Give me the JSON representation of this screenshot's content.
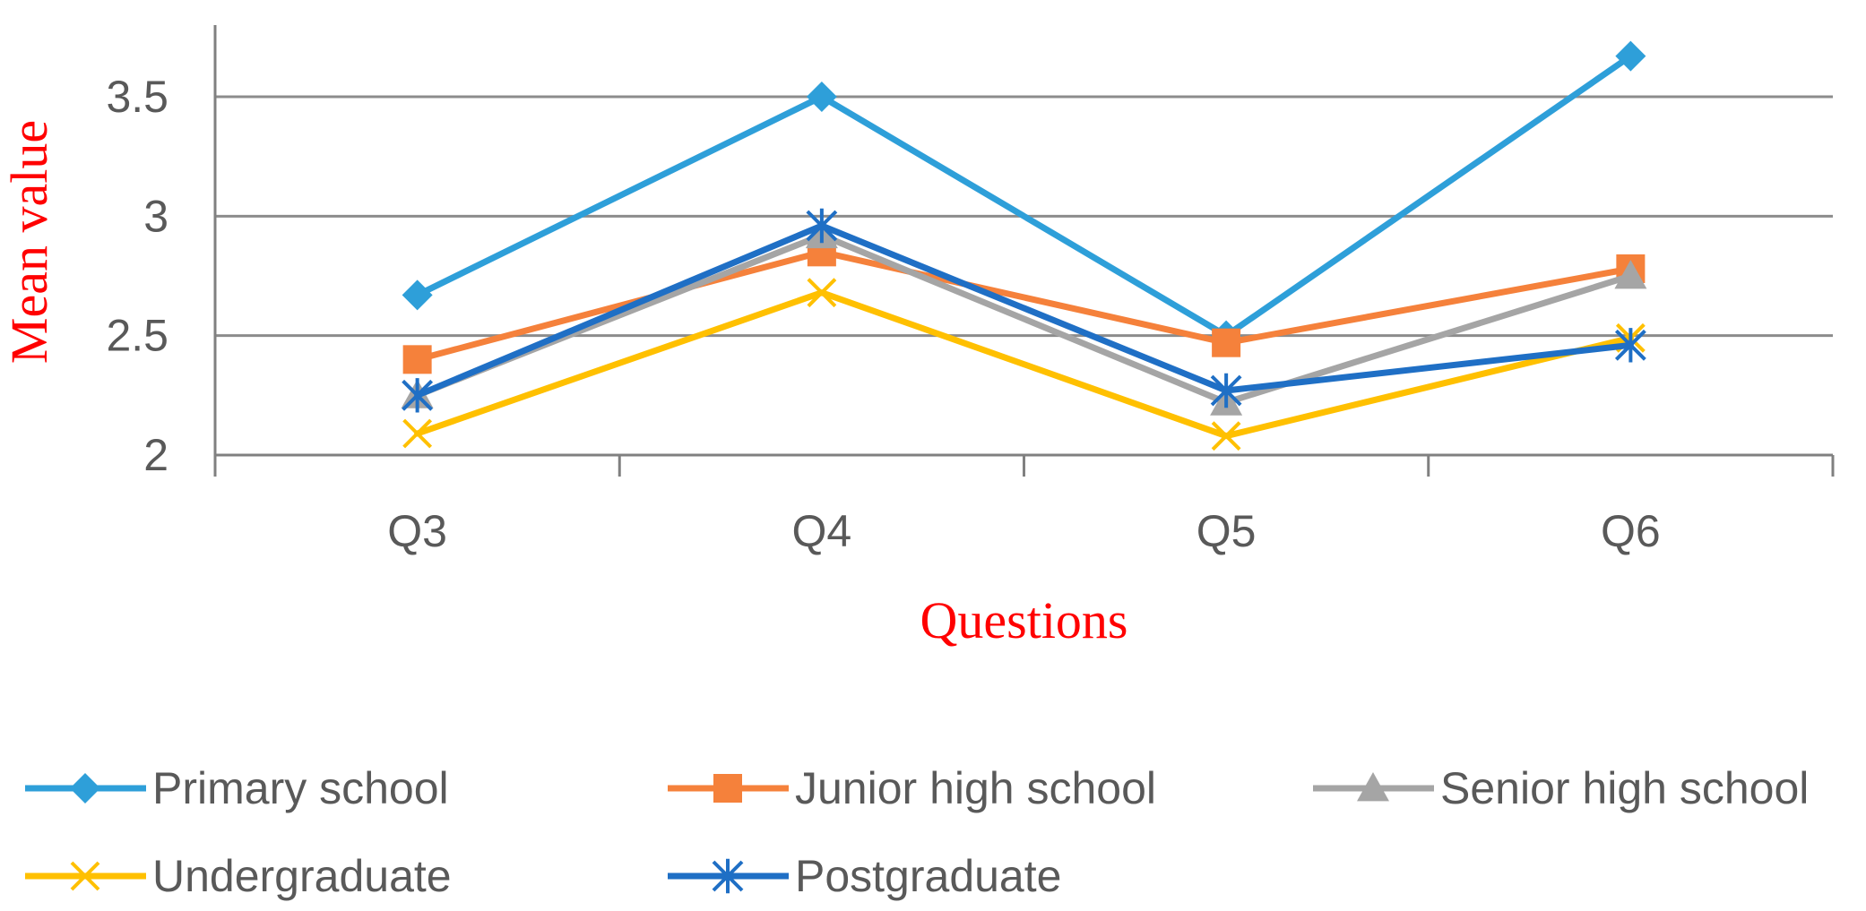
{
  "chart_data": {
    "type": "line",
    "title": "",
    "xlabel": "Questions",
    "ylabel": "Mean value",
    "categories": [
      "Q3",
      "Q4",
      "Q5",
      "Q6"
    ],
    "ylim": [
      2,
      3.75
    ],
    "yticks": [
      2,
      2.5,
      3,
      3.5
    ],
    "ytick_labels": [
      "2",
      "2.5",
      "3",
      "3.5"
    ],
    "grid": true,
    "legend_position": "bottom",
    "series": [
      {
        "name": "Primary school",
        "color": "#2e9fd9",
        "marker": "diamond",
        "values": [
          2.67,
          3.5,
          2.5,
          3.67
        ]
      },
      {
        "name": "Junior high school",
        "color": "#f5813b",
        "marker": "square",
        "values": [
          2.4,
          2.85,
          2.47,
          2.78
        ]
      },
      {
        "name": "Senior high school",
        "color": "#a5a5a5",
        "marker": "triangle",
        "values": [
          2.25,
          2.92,
          2.22,
          2.75
        ]
      },
      {
        "name": "Undergraduate",
        "color": "#ffc000",
        "marker": "x",
        "values": [
          2.09,
          2.68,
          2.08,
          2.49
        ]
      },
      {
        "name": "Postgraduate",
        "color": "#1f6fc5",
        "marker": "star",
        "values": [
          2.25,
          2.96,
          2.27,
          2.46
        ]
      }
    ]
  }
}
